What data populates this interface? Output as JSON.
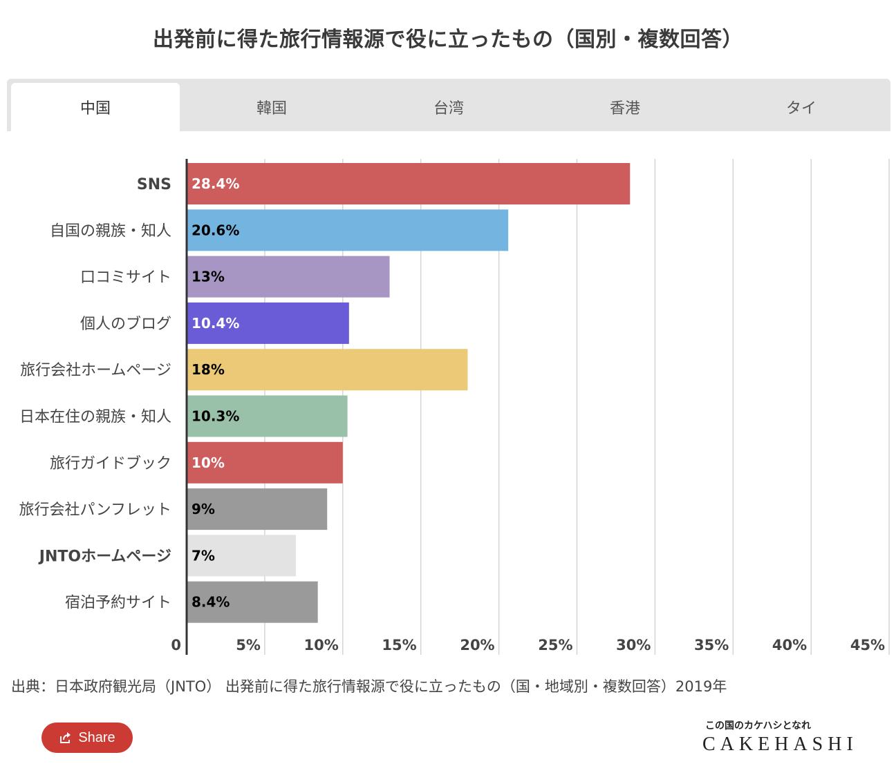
{
  "title": "出発前に得た旅行情報源で役に立ったもの（国別・複数回答）",
  "tabs": [
    {
      "label": "中国",
      "active": true
    },
    {
      "label": "韓国",
      "active": false
    },
    {
      "label": "台湾",
      "active": false
    },
    {
      "label": "香港",
      "active": false
    },
    {
      "label": "タイ",
      "active": false
    }
  ],
  "chart_data": {
    "type": "bar",
    "orientation": "horizontal",
    "title": "",
    "xlabel": "",
    "ylabel": "",
    "xlim": [
      0,
      45
    ],
    "x_ticks": [
      "0",
      "5%",
      "10%",
      "15%",
      "20%",
      "25%",
      "30%",
      "35%",
      "40%",
      "45%"
    ],
    "grid": true,
    "categories": [
      "SNS",
      "自国の親族・知人",
      "口コミサイト",
      "個人のブログ",
      "旅行会社ホームページ",
      "日本在住の親族・知人",
      "旅行ガイドブック",
      "旅行会社パンフレット",
      "JNTOホームページ",
      "宿泊予約サイト"
    ],
    "values": [
      28.4,
      20.6,
      13,
      10.4,
      18,
      10.3,
      10,
      9,
      7,
      8.4
    ],
    "value_labels": [
      "28.4%",
      "20.6%",
      "13%",
      "10.4%",
      "18%",
      "10.3%",
      "10%",
      "9%",
      "7%",
      "8.4%"
    ],
    "colors": [
      "#cd5c5c",
      "#74b4e0",
      "#a795c4",
      "#6a5bd6",
      "#ebc977",
      "#99c0a8",
      "#cd5c5c",
      "#9a9a9a",
      "#e3e3e3",
      "#9a9a9a"
    ],
    "label_colors": [
      "#ffffff",
      "#000000",
      "#000000",
      "#ffffff",
      "#000000",
      "#000000",
      "#ffffff",
      "#000000",
      "#000000",
      "#000000"
    ]
  },
  "source": "出典：日本政府観光局（JNTO） 出発前に得た旅行情報源で役に立ったもの（国・地域別・複数回答）2019年",
  "share": {
    "label": "Share",
    "icon": "share-icon"
  },
  "logo": {
    "tagline": "この国のカケハシとなれ",
    "wordmark": "CAKEHASHI"
  }
}
